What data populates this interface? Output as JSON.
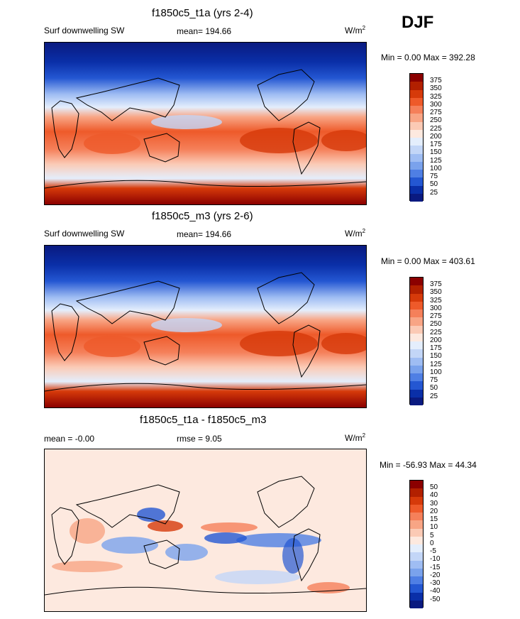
{
  "season": "DJF",
  "panels": [
    {
      "title": "f1850c5_t1a (yrs 2-4)",
      "left_label": "Surf downwelling SW",
      "center_label": "mean= 194.66",
      "units_base": "W/m",
      "units_exp": "2",
      "minmax": "Min =   0.00 Max = 392.28",
      "colorbar_levels": [
        "375",
        "350",
        "325",
        "300",
        "275",
        "250",
        "225",
        "200",
        "175",
        "150",
        "125",
        "100",
        "75",
        "50",
        "25"
      ],
      "colors": [
        "#8b0000",
        "#b22000",
        "#d63a0a",
        "#ee5a2a",
        "#f5805a",
        "#f8a585",
        "#fbcab5",
        "#fde9df",
        "#e4eefc",
        "#c3d6f7",
        "#9fbdf3",
        "#7aa2ec",
        "#4f7fe4",
        "#2457d2",
        "#0a2fa8",
        "#0a1a80"
      ]
    },
    {
      "title": "f1850c5_m3 (yrs 2-6)",
      "left_label": "Surf downwelling SW",
      "center_label": "mean= 194.66",
      "units_base": "W/m",
      "units_exp": "2",
      "minmax": "Min =   0.00 Max = 403.61",
      "colorbar_levels": [
        "375",
        "350",
        "325",
        "300",
        "275",
        "250",
        "225",
        "200",
        "175",
        "150",
        "125",
        "100",
        "75",
        "50",
        "25"
      ],
      "colors": [
        "#8b0000",
        "#b22000",
        "#d63a0a",
        "#ee5a2a",
        "#f5805a",
        "#f8a585",
        "#fbcab5",
        "#fde9df",
        "#e4eefc",
        "#c3d6f7",
        "#9fbdf3",
        "#7aa2ec",
        "#4f7fe4",
        "#2457d2",
        "#0a2fa8",
        "#0a1a80"
      ]
    },
    {
      "title": "f1850c5_t1a - f1850c5_m3",
      "left_label": "mean =  -0.00",
      "center_label": "rmse =   9.05",
      "units_base": "W/m",
      "units_exp": "2",
      "minmax": "Min = -56.93 Max =  44.34",
      "colorbar_levels": [
        "50",
        "40",
        "30",
        "20",
        "15",
        "10",
        "5",
        "0",
        "-5",
        "-10",
        "-15",
        "-20",
        "-30",
        "-40",
        "-50"
      ],
      "colors": [
        "#8b0000",
        "#b22000",
        "#d63a0a",
        "#ee5a2a",
        "#f5805a",
        "#f8a585",
        "#fbcab5",
        "#fde9df",
        "#e4eefc",
        "#c3d6f7",
        "#9fbdf3",
        "#7aa2ec",
        "#4f7fe4",
        "#2457d2",
        "#0a2fa8",
        "#0a1a80"
      ]
    }
  ],
  "chart_data": [
    {
      "type": "heatmap",
      "title": "f1850c5_t1a (yrs 2-4)",
      "variable": "Surf downwelling SW",
      "season": "DJF",
      "mean": 194.66,
      "min": 0.0,
      "max": 392.28,
      "units": "W/m2",
      "contour_levels": [
        25,
        50,
        75,
        100,
        125,
        150,
        175,
        200,
        225,
        250,
        275,
        300,
        325,
        350,
        375
      ]
    },
    {
      "type": "heatmap",
      "title": "f1850c5_m3 (yrs 2-6)",
      "variable": "Surf downwelling SW",
      "season": "DJF",
      "mean": 194.66,
      "min": 0.0,
      "max": 403.61,
      "units": "W/m2",
      "contour_levels": [
        25,
        50,
        75,
        100,
        125,
        150,
        175,
        200,
        225,
        250,
        275,
        300,
        325,
        350,
        375
      ]
    },
    {
      "type": "heatmap",
      "title": "f1850c5_t1a - f1850c5_m3",
      "season": "DJF",
      "mean": -0.0,
      "rmse": 9.05,
      "min": -56.93,
      "max": 44.34,
      "units": "W/m2",
      "contour_levels": [
        -50,
        -40,
        -30,
        -20,
        -15,
        -10,
        -5,
        0,
        5,
        10,
        15,
        20,
        30,
        40,
        50
      ]
    }
  ]
}
